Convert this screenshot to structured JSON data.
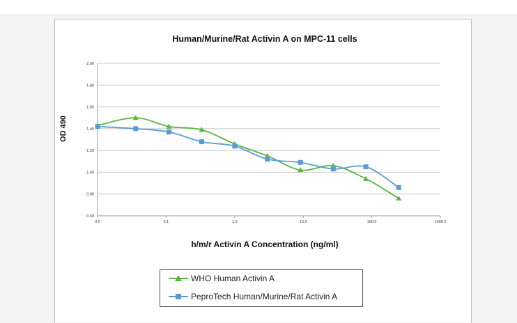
{
  "chart_data": {
    "type": "line",
    "title": "Human/Murine/Rat Activin A on MPC-11 cells",
    "xlabel": "h/m/r Activin A Concentration (ng/ml)",
    "ylabel": "OD 490",
    "x_scale": "log",
    "xlim": [
      0.01,
      1000
    ],
    "ylim": [
      0.6,
      2.0
    ],
    "x_ticks": [
      0.01,
      0.1,
      1,
      10,
      100,
      1000
    ],
    "x_tick_labels": [
      "0.0",
      "0.1",
      "1.0",
      "10.0",
      "100.0",
      "1000.0"
    ],
    "y_ticks": [
      0.6,
      0.8,
      1.0,
      1.2,
      1.4,
      1.6,
      1.8,
      2.0
    ],
    "y_tick_labels": [
      "0.60",
      "0.80",
      "1.00",
      "1.20",
      "1.40",
      "1.60",
      "1.80",
      "2.00"
    ],
    "grid": "horizontal",
    "legend_position": "bottom",
    "series": [
      {
        "name": "WHO Human Activin A",
        "color": "#58b63d",
        "marker": "triangle",
        "x": [
          0.01,
          0.036,
          0.11,
          0.33,
          1,
          3,
          9.1,
          27.4,
          82,
          247
        ],
        "values": [
          1.43,
          1.5,
          1.42,
          1.39,
          1.26,
          1.15,
          1.02,
          1.06,
          0.94,
          0.76
        ]
      },
      {
        "name": "PeproTech Human/Murine/Rat Activin A",
        "color": "#5b9bd5",
        "marker": "square",
        "x": [
          0.01,
          0.036,
          0.11,
          0.33,
          1,
          3,
          9.1,
          27.4,
          82,
          247
        ],
        "values": [
          1.42,
          1.4,
          1.37,
          1.28,
          1.24,
          1.12,
          1.09,
          1.03,
          1.05,
          0.86
        ]
      }
    ]
  }
}
